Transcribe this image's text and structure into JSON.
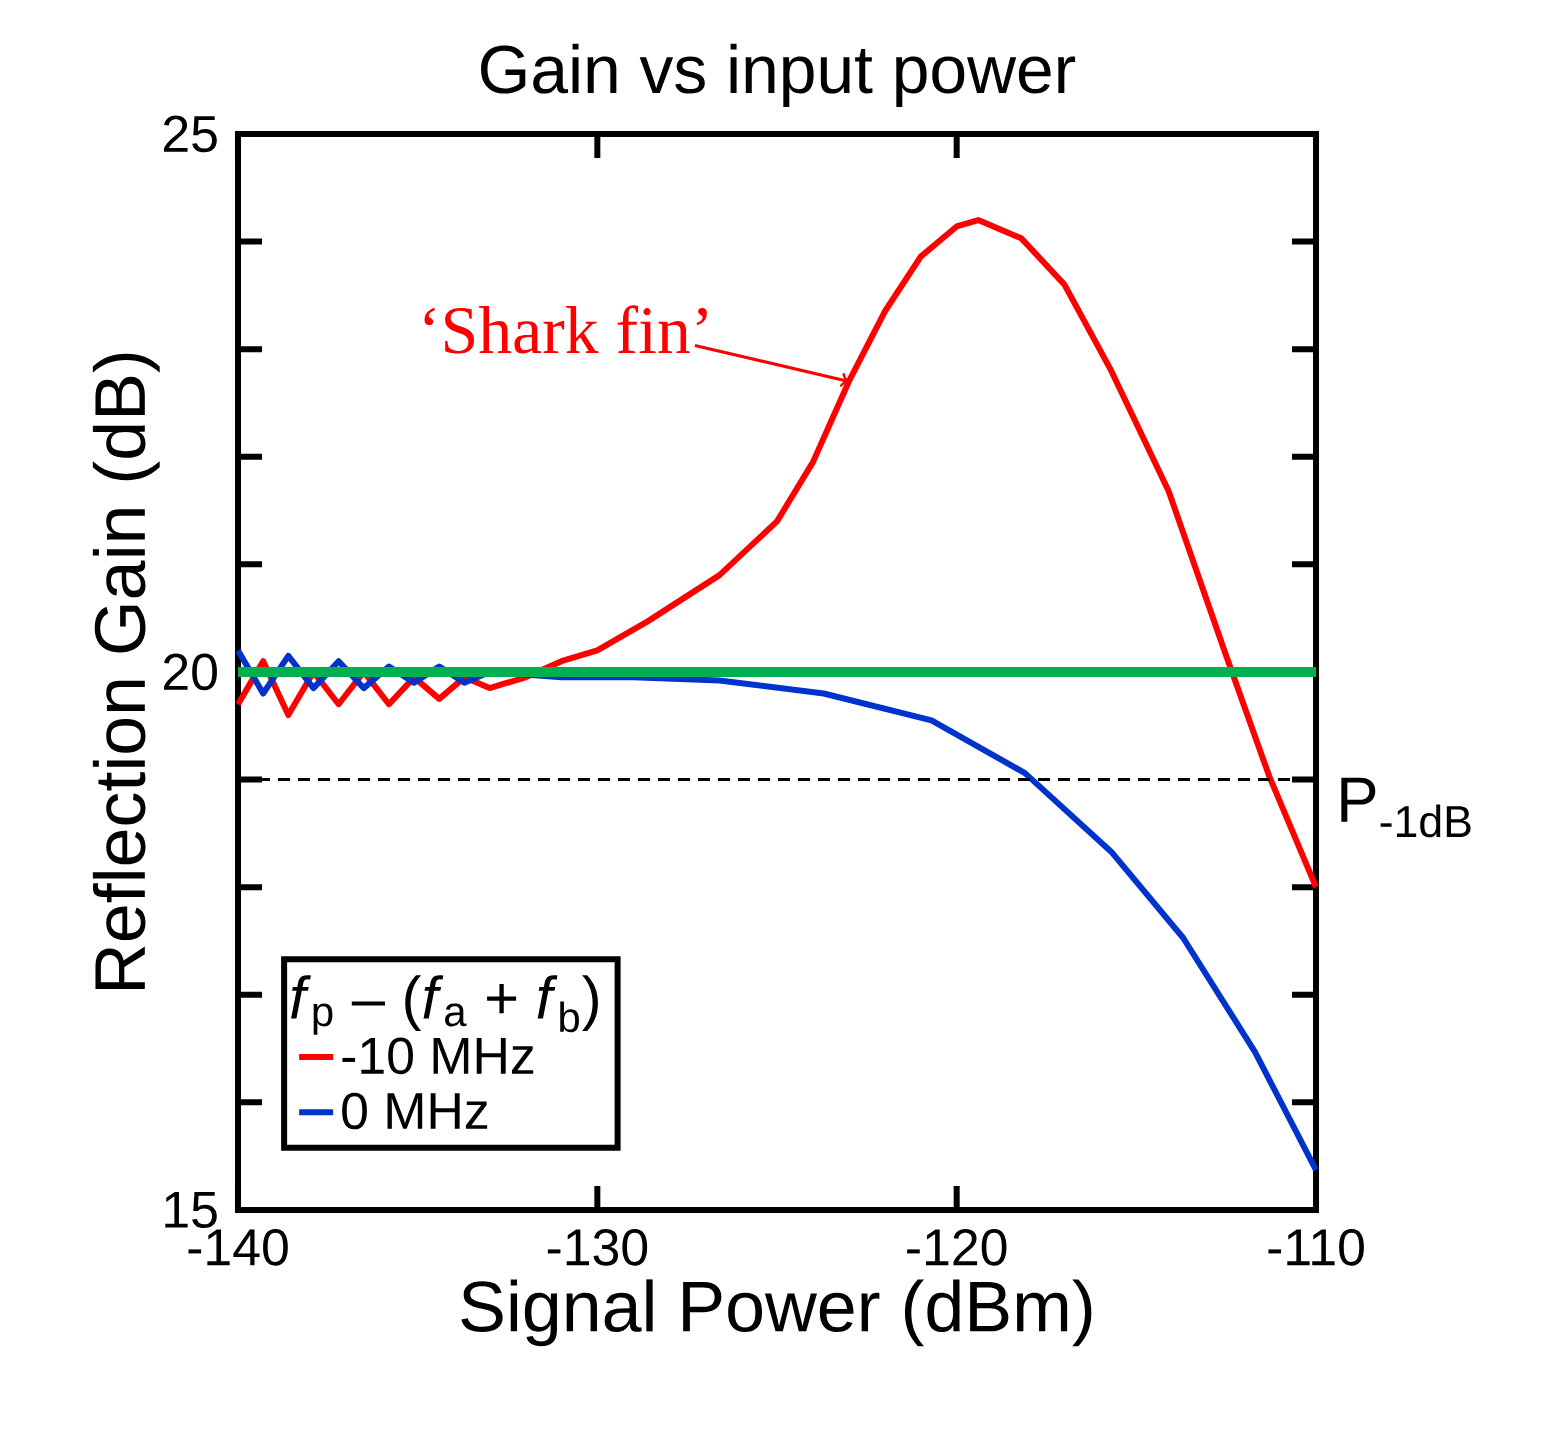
{
  "chart_data": {
    "type": "line",
    "title": "Gain vs input power",
    "xlabel": "Signal Power (dBm)",
    "ylabel": "Reflection Gain (dB)",
    "xlim": [
      -140,
      -110
    ],
    "ylim": [
      15,
      25
    ],
    "xticks": [
      -140,
      -130,
      -120,
      -110
    ],
    "yticks": [
      15,
      {
        "value": 16,
        "label": null
      },
      {
        "value": 17,
        "label": null
      },
      {
        "value": 18,
        "label": null
      },
      {
        "value": 19,
        "label": null
      },
      20,
      {
        "value": 21,
        "label": null
      },
      {
        "value": 22,
        "label": null
      },
      {
        "value": 23,
        "label": null
      },
      {
        "value": 24,
        "label": null
      },
      25
    ],
    "legend": "bottom left",
    "legend_title": "*f*$_{p}$ – (*f*$_{a}$ + *f*$_{b}$)",
    "series": [
      {
        "name": "-10 MHz",
        "color": "#ff0000",
        "x": [
          -140,
          -139.3,
          -138.6,
          -137.9,
          -137.2,
          -136.5,
          -135.8,
          -135.1,
          -134.4,
          -133.7,
          -133,
          -132,
          -131,
          -130,
          -128.6,
          -126.6,
          -125,
          -124,
          -123,
          -122,
          -121,
          -120,
          -119.4,
          -118.2,
          -117,
          -115.7,
          -114.1,
          -112.5,
          -111.3,
          -110
        ],
        "values": [
          19.7,
          20.1,
          19.6,
          20.0,
          19.7,
          20.0,
          19.7,
          19.95,
          19.75,
          19.95,
          19.85,
          19.95,
          20.1,
          20.2,
          20.47,
          20.9,
          21.4,
          21.95,
          22.7,
          23.35,
          23.86,
          24.14,
          24.2,
          24.03,
          23.6,
          22.8,
          21.68,
          20.15,
          19.03,
          18.0
        ]
      },
      {
        "name": "0 MHz",
        "color": "#0033cc",
        "x": [
          -140,
          -139.3,
          -138.6,
          -137.9,
          -137.2,
          -136.5,
          -135.8,
          -135.1,
          -134.4,
          -133.7,
          -133,
          -131,
          -129,
          -126.6,
          -123.7,
          -120.7,
          -118.1,
          -115.7,
          -113.7,
          -111.7,
          -110
        ],
        "values": [
          20.2,
          19.8,
          20.15,
          19.85,
          20.1,
          19.85,
          20.05,
          19.9,
          20.05,
          19.9,
          20.0,
          19.95,
          19.95,
          19.92,
          19.8,
          19.55,
          19.06,
          18.33,
          17.53,
          16.47,
          15.37
        ]
      }
    ],
    "ref_lines": [
      {
        "axis": "y",
        "value": 20,
        "color": "#00b050",
        "line_style": "solid"
      },
      {
        "axis": "y",
        "value": 19,
        "color": "#000000",
        "line_style": "dashed",
        "label": "P$_{-1dB}$"
      }
    ],
    "annotations": [
      {
        "text": "‘Shark fin’",
        "x": -123,
        "y": 22.7
      }
    ]
  }
}
